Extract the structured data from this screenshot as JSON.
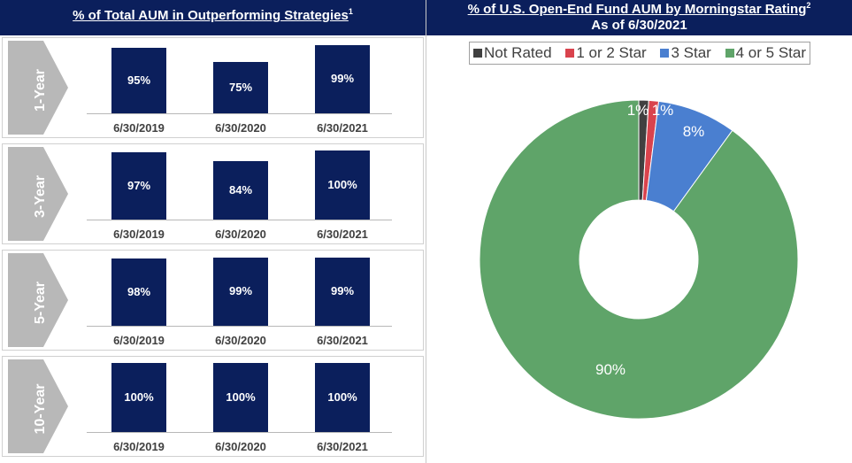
{
  "left_header": {
    "title": "% of Total AUM in Outperforming Strategies",
    "sup": "1"
  },
  "right_header": {
    "title_line1": "% of U.S. Open-End Fund AUM by Morningstar Rating",
    "sup": "2",
    "title_line2": "As of 6/30/2021"
  },
  "colors": {
    "navy": "#0b1f5c",
    "chevron": "#b8b8b8",
    "not_rated": "#404040",
    "one_two_star": "#d9434d",
    "three_star": "#4a7fd0",
    "four_five_star": "#5fa469"
  },
  "chart_data": [
    {
      "type": "bar",
      "title": "1-Year",
      "categories": [
        "6/30/2019",
        "6/30/2020",
        "6/30/2021"
      ],
      "values": [
        95,
        75,
        99
      ],
      "labels": [
        "95%",
        "75%",
        "99%"
      ],
      "ylim": [
        0,
        100
      ]
    },
    {
      "type": "bar",
      "title": "3-Year",
      "categories": [
        "6/30/2019",
        "6/30/2020",
        "6/30/2021"
      ],
      "values": [
        97,
        84,
        100
      ],
      "labels": [
        "97%",
        "84%",
        "100%"
      ],
      "ylim": [
        0,
        100
      ]
    },
    {
      "type": "bar",
      "title": "5-Year",
      "categories": [
        "6/30/2019",
        "6/30/2020",
        "6/30/2021"
      ],
      "values": [
        98,
        99,
        99
      ],
      "labels": [
        "98%",
        "99%",
        "99%"
      ],
      "ylim": [
        0,
        100
      ]
    },
    {
      "type": "bar",
      "title": "10-Year",
      "categories": [
        "6/30/2019",
        "6/30/2020",
        "6/30/2021"
      ],
      "values": [
        100,
        100,
        100
      ],
      "labels": [
        "100%",
        "100%",
        "100%"
      ],
      "ylim": [
        0,
        100
      ]
    },
    {
      "type": "pie",
      "title": "% of U.S. Open-End Fund AUM by Morningstar Rating",
      "legend_position": "top",
      "categories": [
        "Not Rated",
        "1 or 2 Star",
        "3 Star",
        "4 or 5 Star"
      ],
      "values": [
        1,
        1,
        8,
        90
      ],
      "labels": [
        "1%",
        "1%",
        "8%",
        "90%"
      ],
      "colors": [
        "#404040",
        "#d9434d",
        "#4a7fd0",
        "#5fa469"
      ]
    }
  ]
}
